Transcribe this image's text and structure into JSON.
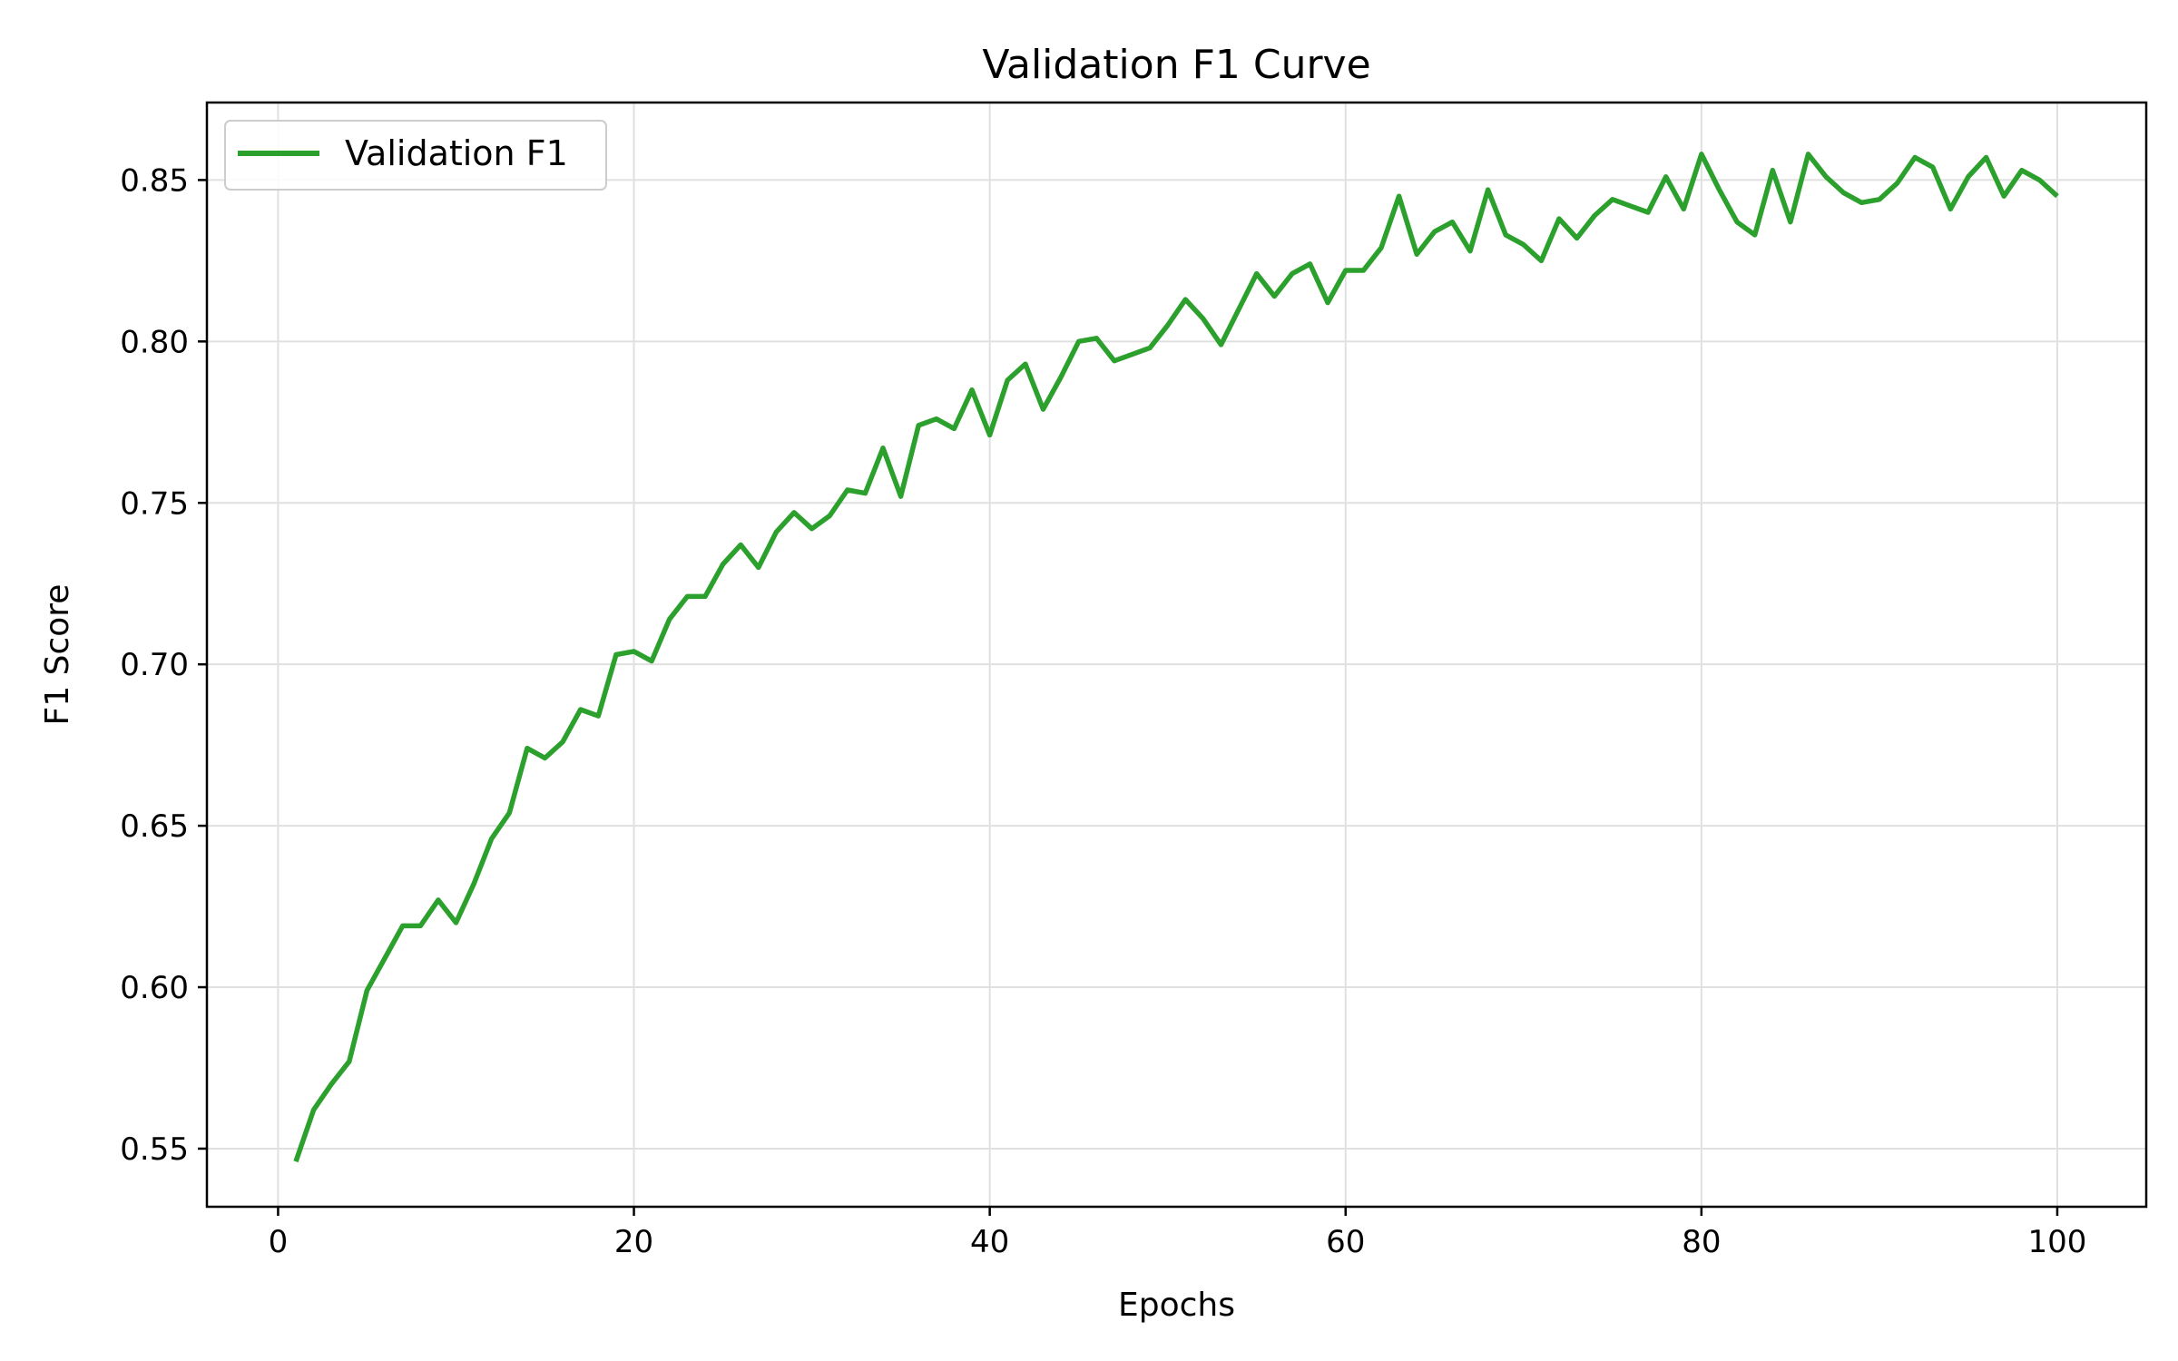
{
  "chart_data": {
    "type": "line",
    "title": "Validation F1 Curve",
    "xlabel": "Epochs",
    "ylabel": "F1 Score",
    "xlim": [
      -4,
      105
    ],
    "ylim": [
      0.532,
      0.874
    ],
    "xticks": [
      0,
      20,
      40,
      60,
      80,
      100
    ],
    "xtick_labels": [
      "0",
      "20",
      "40",
      "60",
      "80",
      "100"
    ],
    "yticks": [
      0.55,
      0.6,
      0.65,
      0.7,
      0.75,
      0.8,
      0.85
    ],
    "ytick_labels": [
      "0.55",
      "0.60",
      "0.65",
      "0.70",
      "0.75",
      "0.80",
      "0.85"
    ],
    "grid": true,
    "legend_position": "upper-left",
    "colors": {
      "series": "#2ca02c",
      "grid": "#e0e0e0",
      "axes": "#000000"
    },
    "series": [
      {
        "name": "Validation F1",
        "color": "#2ca02c",
        "x": [
          1,
          2,
          3,
          4,
          5,
          6,
          7,
          8,
          9,
          10,
          11,
          12,
          13,
          14,
          15,
          16,
          17,
          18,
          19,
          20,
          21,
          22,
          23,
          24,
          25,
          26,
          27,
          28,
          29,
          30,
          31,
          32,
          33,
          34,
          35,
          36,
          37,
          38,
          39,
          40,
          41,
          42,
          43,
          44,
          45,
          46,
          47,
          48,
          49,
          50,
          51,
          52,
          53,
          54,
          55,
          56,
          57,
          58,
          59,
          60,
          61,
          62,
          63,
          64,
          65,
          66,
          67,
          68,
          69,
          70,
          71,
          72,
          73,
          74,
          75,
          76,
          77,
          78,
          79,
          80,
          81,
          82,
          83,
          84,
          85,
          86,
          87,
          88,
          89,
          90,
          91,
          92,
          93,
          94,
          95,
          96,
          97,
          98,
          99,
          100
        ],
        "y": [
          0.546,
          0.562,
          0.57,
          0.577,
          0.599,
          0.609,
          0.619,
          0.619,
          0.627,
          0.62,
          0.632,
          0.646,
          0.654,
          0.674,
          0.671,
          0.676,
          0.686,
          0.684,
          0.703,
          0.704,
          0.701,
          0.714,
          0.721,
          0.721,
          0.731,
          0.737,
          0.73,
          0.741,
          0.747,
          0.742,
          0.746,
          0.754,
          0.753,
          0.767,
          0.752,
          0.774,
          0.776,
          0.773,
          0.785,
          0.771,
          0.788,
          0.793,
          0.779,
          0.789,
          0.8,
          0.801,
          0.794,
          0.796,
          0.798,
          0.805,
          0.813,
          0.807,
          0.799,
          0.81,
          0.821,
          0.814,
          0.821,
          0.824,
          0.812,
          0.822,
          0.822,
          0.829,
          0.845,
          0.827,
          0.834,
          0.837,
          0.828,
          0.847,
          0.833,
          0.83,
          0.825,
          0.838,
          0.832,
          0.839,
          0.844,
          0.842,
          0.84,
          0.851,
          0.841,
          0.858,
          0.847,
          0.837,
          0.833,
          0.853,
          0.837,
          0.858,
          0.851,
          0.846,
          0.843,
          0.844,
          0.849,
          0.857,
          0.854,
          0.841,
          0.851,
          0.857,
          0.845,
          0.853,
          0.85,
          0.845
        ]
      }
    ]
  }
}
